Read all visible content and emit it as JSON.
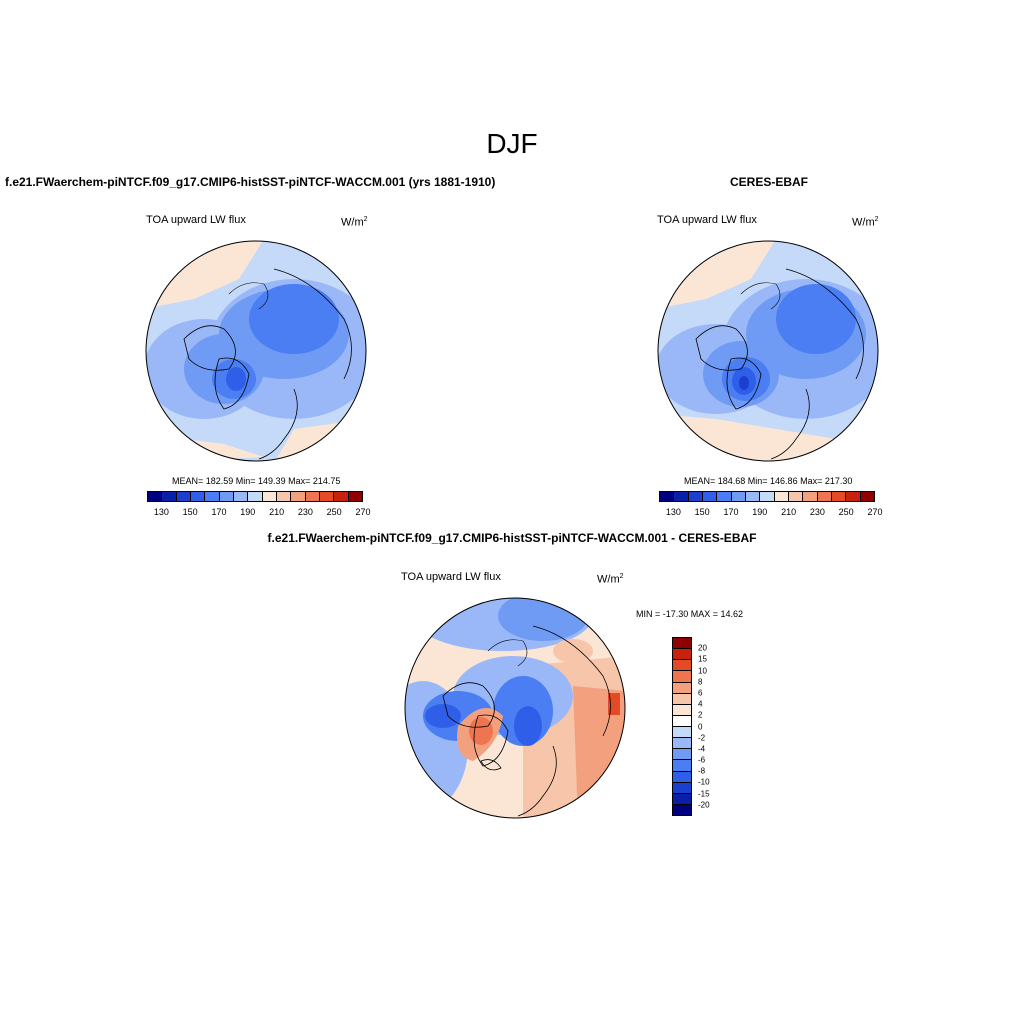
{
  "title": "DJF",
  "panels": [
    {
      "title": "f.e21.FWaerchem-piNTCF.f09_g17.CMIP6-histSST-piNTCF-WACCM.001 (yrs 1881-1910)",
      "field": "TOA upward LW flux",
      "units": "W/m",
      "units_sup": "2",
      "stats": "MEAN= 182.59   Min= 149.39   Max= 214.75"
    },
    {
      "title": "CERES-EBAF",
      "field": "TOA upward LW flux",
      "units": "W/m",
      "units_sup": "2",
      "stats": "MEAN= 184.68   Min= 146.86   Max= 217.30"
    },
    {
      "title": "f.e21.FWaerchem-piNTCF.f09_g17.CMIP6-histSST-piNTCF-WACCM.001 - CERES-EBAF",
      "field": "TOA upward LW flux",
      "units": "W/m",
      "units_sup": "2",
      "stats": "MIN = -17.30 MAX =  14.62"
    }
  ],
  "colorbar_abs": {
    "colors": [
      "#00007f",
      "#0a1fa8",
      "#1b3fcf",
      "#2f5fe8",
      "#4a7ef2",
      "#6f9bf5",
      "#9ab8f7",
      "#c5d9f9",
      "#fbe6d6",
      "#f7c5aa",
      "#f3a07e",
      "#ee7550",
      "#e34a26",
      "#c8220e",
      "#8f0000"
    ],
    "labels": [
      "130",
      "150",
      "170",
      "190",
      "210",
      "230",
      "250",
      "270"
    ]
  },
  "colorbar_diff": {
    "colors": [
      "#8f0000",
      "#c8220e",
      "#e34a26",
      "#ee7550",
      "#f3a07e",
      "#f7c5aa",
      "#fbe6d6",
      "#ffffff",
      "#c5d9f9",
      "#9ab8f7",
      "#6f9bf5",
      "#4a7ef2",
      "#2f5fe8",
      "#1b3fcf",
      "#0a1fa8",
      "#00007f"
    ],
    "labels": [
      "20",
      "15",
      "10",
      "8",
      "6",
      "4",
      "2",
      "0",
      "-2",
      "-4",
      "-6",
      "-8",
      "-10",
      "-15",
      "-20"
    ]
  }
}
